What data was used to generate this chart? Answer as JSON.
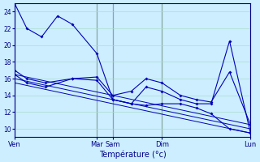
{
  "background_color": "#cceeff",
  "grid_color": "#aaddcc",
  "line_color": "#0000bb",
  "xlabel": "Température (°c)",
  "ylim": [
    9,
    25
  ],
  "xlim": [
    0,
    192
  ],
  "yticks": [
    10,
    12,
    14,
    16,
    18,
    20,
    22,
    24
  ],
  "day_labels": [
    "Ven",
    "Mar",
    "Sam",
    "Dim",
    "Lun"
  ],
  "day_positions": [
    0,
    67,
    80,
    120,
    192
  ],
  "vline_color": "#333333",
  "series": [
    {
      "x": [
        0,
        10,
        22,
        35,
        47,
        67,
        80,
        95,
        107,
        120,
        135,
        148,
        160,
        175,
        192
      ],
      "y": [
        25,
        22,
        21,
        23.5,
        22.5,
        19,
        13.5,
        13,
        12.8,
        13,
        13,
        12.5,
        11.8,
        10,
        9.5
      ],
      "marker": true
    },
    {
      "x": [
        0,
        10,
        25,
        47,
        67,
        80,
        95,
        107,
        120,
        135,
        148,
        160,
        175,
        192
      ],
      "y": [
        17,
        16,
        15.5,
        16,
        16.2,
        14,
        14.5,
        16,
        15.5,
        14,
        13.5,
        13.2,
        16.8,
        10.5
      ],
      "marker": true
    },
    {
      "x": [
        0,
        10,
        25,
        47,
        67,
        80,
        95,
        107,
        120,
        135,
        148,
        160,
        175,
        192
      ],
      "y": [
        16.5,
        15.5,
        15,
        16,
        15.8,
        13.5,
        13,
        15,
        14.5,
        13.5,
        13,
        13,
        20.5,
        9.5
      ],
      "marker": true
    }
  ],
  "trend_lines": [
    {
      "x": [
        0,
        192
      ],
      "y": [
        16.5,
        10.5
      ]
    },
    {
      "x": [
        0,
        192
      ],
      "y": [
        16.0,
        10.0
      ]
    },
    {
      "x": [
        0,
        192
      ],
      "y": [
        15.5,
        9.5
      ]
    }
  ]
}
